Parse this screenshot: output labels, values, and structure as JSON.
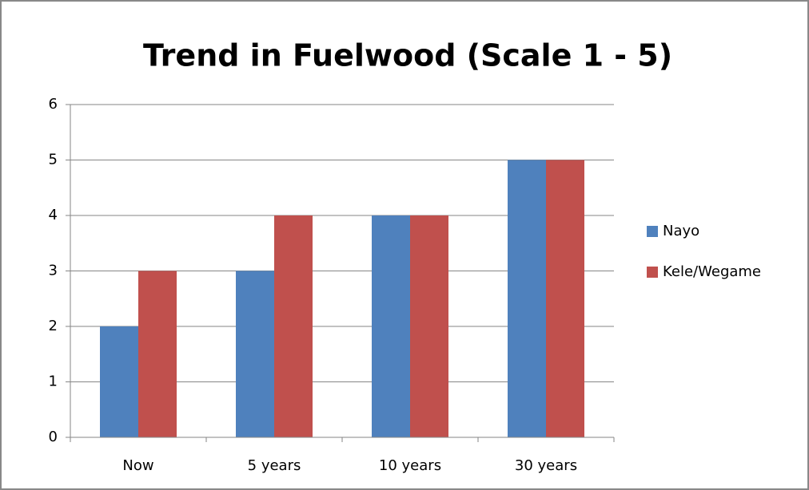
{
  "chart_data": {
    "type": "bar",
    "title": "Trend in Fuelwood (Scale 1 - 5)",
    "categories": [
      "Now",
      "5 years",
      "10 years",
      "30 years"
    ],
    "series": [
      {
        "name": "Nayo",
        "color": "#4f81bd",
        "values": [
          2,
          3,
          4,
          5
        ]
      },
      {
        "name": "Kele/Wegame",
        "color": "#c0504d",
        "values": [
          3,
          4,
          4,
          5
        ]
      }
    ],
    "ylim": [
      0,
      6
    ],
    "yticks": [
      0,
      1,
      2,
      3,
      4,
      5,
      6
    ],
    "grid": true,
    "legend": "right"
  }
}
